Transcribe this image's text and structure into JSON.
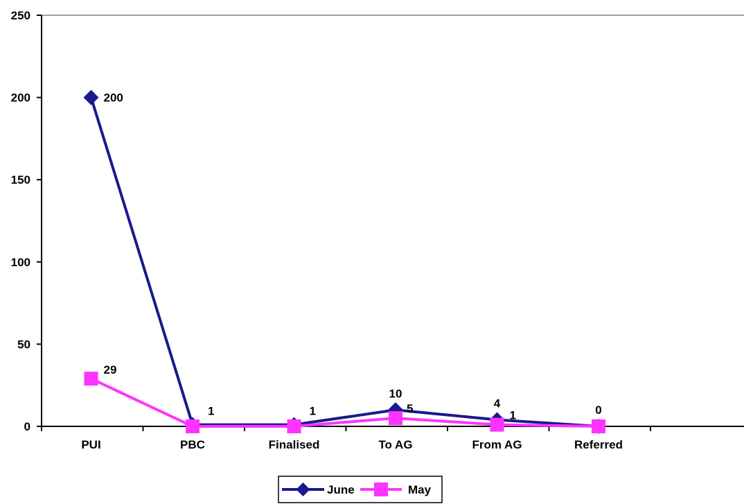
{
  "chart_data": {
    "type": "line",
    "categories": [
      "PUI",
      "PBC",
      "Finalised",
      "To AG",
      "From AG",
      "Referred"
    ],
    "series": [
      {
        "name": "June",
        "values": [
          200,
          1,
          1,
          10,
          4,
          0
        ],
        "color": "#1a1a8c",
        "marker": "diamond",
        "labels": [
          "200",
          "1",
          "1",
          "10",
          "4",
          "0"
        ]
      },
      {
        "name": "May",
        "values": [
          29,
          0,
          0,
          5,
          1,
          0
        ],
        "color": "#ff33ff",
        "marker": "square",
        "labels": [
          "29",
          "",
          "",
          "5",
          "1",
          ""
        ]
      }
    ],
    "yticks": [
      "0",
      "50",
      "100",
      "150",
      "200",
      "250"
    ],
    "ylim": [
      0,
      250
    ],
    "grid": false,
    "legend_position": "bottom",
    "title": "",
    "xlabel": "",
    "ylabel": ""
  }
}
